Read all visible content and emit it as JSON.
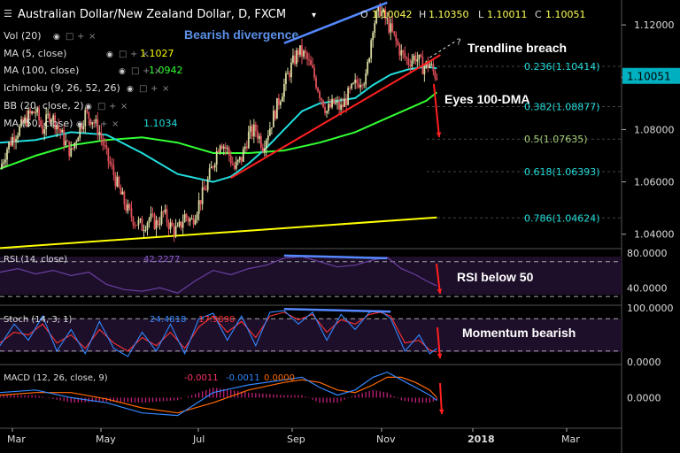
{
  "header": {
    "symbol": "Australian Dollar/New Zealand Dollar, D, FXCM",
    "ohlc": {
      "open_label": "O",
      "open": "1.10042",
      "high_label": "H",
      "high": "1.10350",
      "low_label": "L",
      "low": "1.10011",
      "close_label": "C",
      "close": "1.10051"
    }
  },
  "indicators": {
    "vol": {
      "label": "Vol (20)"
    },
    "ma5": {
      "label": "MA (5, close)",
      "value": "1.1027",
      "color": "#ffff00"
    },
    "ma100": {
      "label": "MA (100, close)",
      "value": "1.0942",
      "color": "#33ff33"
    },
    "ichimoku": {
      "label": "Ichimoku (9, 26, 52, 26)"
    },
    "bb": {
      "label": "BB (20, close, 2)"
    },
    "ma50": {
      "label": "MA (50, close)",
      "value": "1.1034",
      "color": "#22dddd"
    }
  },
  "annotations": {
    "bearish_divergence": "Bearish divergence",
    "trendline_breach": "Trendline breach",
    "eyes_100dma": "Eyes 100-DMA",
    "rsi_below_50": "RSI below 50",
    "momentum_bearish": "Momentum bearish"
  },
  "colors": {
    "background": "#000000",
    "bull_candle": "#d8d8a0",
    "bear_candle": "#e0505a",
    "ma50": "#22dddd",
    "ma100": "#33ff33",
    "support_line": "#ffff00",
    "trendline": "#ff2020",
    "divergence": "#5588ff",
    "fib": "#22dddd",
    "arrow": "#ff2020",
    "rsi_line": "#6a3fa0",
    "stoch_k": "#3388ff",
    "stoch_d": "#ff3333",
    "macd_line": "#3388ff",
    "signal_line": "#ff6a00",
    "histogram": "#c0207a",
    "current_price_bg": "#00b0c0"
  },
  "chart_data": [
    {
      "type": "candlestick",
      "title": "Australian Dollar/New Zealand Dollar, D, FXCM",
      "x_ticks": [
        "Mar",
        "May",
        "Jul",
        "Sep",
        "Nov",
        "2018",
        "Mar"
      ],
      "y_ticks": [
        "1.04000",
        "1.06000",
        "1.08000",
        "1.10000",
        "1.12000"
      ],
      "ylim": [
        1.0345,
        1.1295
      ],
      "current_price": "1.10051",
      "fibonacci": [
        {
          "label": "0.236(1.10414)",
          "value": 1.10414
        },
        {
          "label": "0.382(1.08877)",
          "value": 1.08877
        },
        {
          "label": "0.5(1.07635)",
          "value": 1.07635
        },
        {
          "label": "0.618(1.06393)",
          "value": 1.06393
        },
        {
          "label": "0.786(1.04624)",
          "value": 1.04624
        }
      ],
      "price_path": [
        [
          0,
          1.065
        ],
        [
          4,
          1.073
        ],
        [
          8,
          1.078
        ],
        [
          12,
          1.081
        ],
        [
          16,
          1.085
        ],
        [
          20,
          1.087
        ],
        [
          24,
          1.08
        ],
        [
          28,
          1.086
        ],
        [
          32,
          1.082
        ],
        [
          36,
          1.076
        ],
        [
          40,
          1.071
        ],
        [
          44,
          1.079
        ],
        [
          48,
          1.086
        ],
        [
          52,
          1.084
        ],
        [
          56,
          1.079
        ],
        [
          60,
          1.07
        ],
        [
          64,
          1.063
        ],
        [
          68,
          1.055
        ],
        [
          72,
          1.049
        ],
        [
          76,
          1.045
        ],
        [
          80,
          1.043
        ],
        [
          84,
          1.046
        ],
        [
          88,
          1.044
        ],
        [
          92,
          1.048
        ],
        [
          96,
          1.043
        ],
        [
          100,
          1.041
        ],
        [
          104,
          1.047
        ],
        [
          108,
          1.045
        ],
        [
          112,
          1.052
        ],
        [
          116,
          1.058
        ],
        [
          120,
          1.067
        ],
        [
          124,
          1.076
        ],
        [
          128,
          1.072
        ],
        [
          132,
          1.065
        ],
        [
          136,
          1.069
        ],
        [
          140,
          1.078
        ],
        [
          144,
          1.08
        ],
        [
          148,
          1.074
        ],
        [
          152,
          1.081
        ],
        [
          156,
          1.089
        ],
        [
          160,
          1.097
        ],
        [
          164,
          1.104
        ],
        [
          168,
          1.11
        ],
        [
          172,
          1.108
        ],
        [
          176,
          1.102
        ],
        [
          180,
          1.094
        ],
        [
          184,
          1.087
        ],
        [
          188,
          1.09
        ],
        [
          192,
          1.088
        ],
        [
          196,
          1.093
        ],
        [
          200,
          1.097
        ],
        [
          204,
          1.1
        ],
        [
          206,
          1.099
        ],
        [
          210,
          1.12
        ],
        [
          214,
          1.126
        ],
        [
          218,
          1.121
        ],
        [
          222,
          1.115
        ],
        [
          226,
          1.109
        ],
        [
          230,
          1.106
        ],
        [
          234,
          1.108
        ],
        [
          238,
          1.104
        ],
        [
          242,
          1.105
        ],
        [
          244,
          1.102
        ],
        [
          246,
          1.1005
        ]
      ],
      "ma50_path": [
        [
          0,
          1.075
        ],
        [
          20,
          1.076
        ],
        [
          40,
          1.079
        ],
        [
          60,
          1.078
        ],
        [
          80,
          1.071
        ],
        [
          100,
          1.063
        ],
        [
          120,
          1.06
        ],
        [
          130,
          1.062
        ],
        [
          140,
          1.067
        ],
        [
          150,
          1.073
        ],
        [
          160,
          1.08
        ],
        [
          170,
          1.087
        ],
        [
          180,
          1.09
        ],
        [
          190,
          1.091
        ],
        [
          200,
          1.092
        ],
        [
          210,
          1.097
        ],
        [
          220,
          1.101
        ],
        [
          230,
          1.103
        ],
        [
          240,
          1.104
        ],
        [
          246,
          1.1034
        ]
      ],
      "ma100_path": [
        [
          0,
          1.065
        ],
        [
          20,
          1.07
        ],
        [
          40,
          1.074
        ],
        [
          60,
          1.076
        ],
        [
          80,
          1.077
        ],
        [
          100,
          1.075
        ],
        [
          120,
          1.071
        ],
        [
          140,
          1.071
        ],
        [
          160,
          1.072
        ],
        [
          180,
          1.075
        ],
        [
          200,
          1.079
        ],
        [
          220,
          1.085
        ],
        [
          240,
          1.091
        ],
        [
          246,
          1.0942
        ]
      ],
      "support_line": [
        [
          0,
          1.0347
        ],
        [
          246,
          1.0464
        ]
      ],
      "rising_trendline": [
        [
          130,
          1.0615
        ],
        [
          248,
          1.1085
        ]
      ],
      "divergence_line": [
        [
          160,
          1.113
        ],
        [
          218,
          1.1285
        ]
      ],
      "trendline_dash": [
        [
          242,
          1.1075
        ],
        [
          256,
          1.1135
        ]
      ]
    },
    {
      "type": "line",
      "name": "RSI (14, close)",
      "value": "42.2277",
      "y_ticks": [
        "40.0000",
        "80.0000"
      ],
      "ylim": [
        20,
        85
      ],
      "levels": [
        70,
        30
      ],
      "values_path": [
        [
          0,
          58
        ],
        [
          10,
          62
        ],
        [
          20,
          56
        ],
        [
          30,
          60
        ],
        [
          40,
          54
        ],
        [
          50,
          58
        ],
        [
          60,
          44
        ],
        [
          70,
          38
        ],
        [
          80,
          36
        ],
        [
          90,
          40
        ],
        [
          100,
          34
        ],
        [
          110,
          48
        ],
        [
          120,
          60
        ],
        [
          130,
          55
        ],
        [
          140,
          62
        ],
        [
          150,
          66
        ],
        [
          160,
          74
        ],
        [
          170,
          76
        ],
        [
          180,
          70
        ],
        [
          190,
          64
        ],
        [
          200,
          66
        ],
        [
          210,
          72
        ],
        [
          218,
          75
        ],
        [
          226,
          62
        ],
        [
          234,
          55
        ],
        [
          240,
          48
        ],
        [
          246,
          42.2
        ]
      ],
      "divergence_line": [
        [
          160,
          77
        ],
        [
          218,
          74
        ]
      ]
    },
    {
      "type": "line",
      "name": "Stoch (14, 3, 1)",
      "k": "24.4818",
      "d": "17.9890",
      "y_ticks": [
        "0.0000",
        "100.0000"
      ],
      "ylim": [
        -5,
        105
      ],
      "levels": [
        80,
        20
      ],
      "k_path": [
        [
          0,
          30
        ],
        [
          8,
          70
        ],
        [
          16,
          40
        ],
        [
          24,
          85
        ],
        [
          32,
          20
        ],
        [
          40,
          60
        ],
        [
          48,
          15
        ],
        [
          56,
          75
        ],
        [
          64,
          25
        ],
        [
          72,
          10
        ],
        [
          80,
          55
        ],
        [
          88,
          20
        ],
        [
          96,
          70
        ],
        [
          104,
          15
        ],
        [
          112,
          80
        ],
        [
          120,
          90
        ],
        [
          128,
          40
        ],
        [
          136,
          85
        ],
        [
          144,
          30
        ],
        [
          152,
          92
        ],
        [
          160,
          95
        ],
        [
          168,
          70
        ],
        [
          176,
          92
        ],
        [
          184,
          40
        ],
        [
          192,
          88
        ],
        [
          200,
          60
        ],
        [
          208,
          92
        ],
        [
          214,
          95
        ],
        [
          220,
          80
        ],
        [
          228,
          20
        ],
        [
          236,
          50
        ],
        [
          242,
          15
        ],
        [
          246,
          24.5
        ]
      ],
      "d_path": [
        [
          0,
          35
        ],
        [
          8,
          55
        ],
        [
          16,
          50
        ],
        [
          24,
          70
        ],
        [
          32,
          35
        ],
        [
          40,
          50
        ],
        [
          48,
          25
        ],
        [
          56,
          60
        ],
        [
          64,
          35
        ],
        [
          72,
          20
        ],
        [
          80,
          45
        ],
        [
          88,
          30
        ],
        [
          96,
          55
        ],
        [
          104,
          25
        ],
        [
          112,
          65
        ],
        [
          120,
          85
        ],
        [
          128,
          55
        ],
        [
          136,
          75
        ],
        [
          144,
          45
        ],
        [
          152,
          85
        ],
        [
          160,
          92
        ],
        [
          168,
          78
        ],
        [
          176,
          88
        ],
        [
          184,
          55
        ],
        [
          192,
          78
        ],
        [
          200,
          70
        ],
        [
          208,
          88
        ],
        [
          214,
          92
        ],
        [
          220,
          85
        ],
        [
          228,
          35
        ],
        [
          236,
          40
        ],
        [
          242,
          22
        ],
        [
          246,
          18
        ]
      ],
      "divergence_line": [
        [
          160,
          98
        ],
        [
          220,
          93
        ]
      ]
    },
    {
      "type": "line",
      "name": "MACD (12, 26, close, 9)",
      "histogram": "-0.0011",
      "macd": "-0.0011",
      "signal": "0.0000",
      "y_ticks": [
        "0.0000"
      ],
      "ylim": [
        -0.012,
        0.013
      ],
      "macd_path": [
        [
          0,
          0.002
        ],
        [
          20,
          0.003
        ],
        [
          40,
          0.0
        ],
        [
          60,
          -0.002
        ],
        [
          80,
          -0.006
        ],
        [
          100,
          -0.007
        ],
        [
          120,
          0.002
        ],
        [
          140,
          0.005
        ],
        [
          160,
          0.007
        ],
        [
          170,
          0.008
        ],
        [
          180,
          0.004
        ],
        [
          190,
          0.001
        ],
        [
          200,
          0.003
        ],
        [
          210,
          0.008
        ],
        [
          218,
          0.01
        ],
        [
          226,
          0.007
        ],
        [
          234,
          0.004
        ],
        [
          242,
          0.001
        ],
        [
          246,
          -0.0011
        ]
      ],
      "signal_path": [
        [
          0,
          0.001
        ],
        [
          20,
          0.002
        ],
        [
          40,
          0.002
        ],
        [
          60,
          -0.0005
        ],
        [
          80,
          -0.004
        ],
        [
          100,
          -0.006
        ],
        [
          120,
          -0.002
        ],
        [
          140,
          0.003
        ],
        [
          160,
          0.006
        ],
        [
          170,
          0.007
        ],
        [
          180,
          0.006
        ],
        [
          190,
          0.003
        ],
        [
          200,
          0.002
        ],
        [
          210,
          0.005
        ],
        [
          218,
          0.008
        ],
        [
          226,
          0.008
        ],
        [
          234,
          0.006
        ],
        [
          242,
          0.003
        ],
        [
          246,
          0.0
        ]
      ]
    }
  ]
}
